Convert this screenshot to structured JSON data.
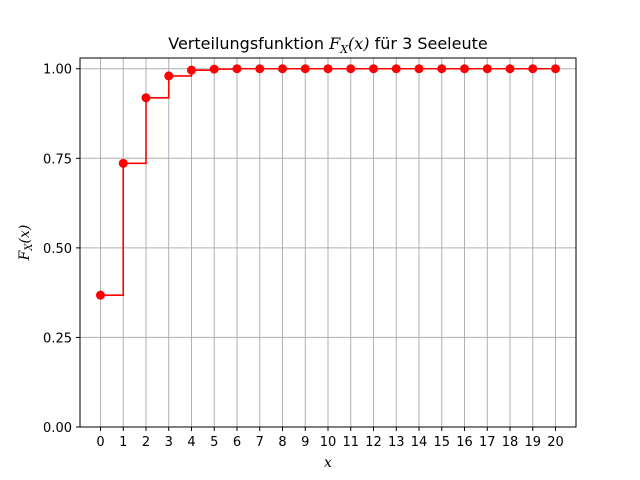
{
  "chart_data": {
    "type": "line",
    "title": "Verteilungsfunktion F_X(x) für 3 Seeleute",
    "title_parts": {
      "before": "Verteilungsfunktion ",
      "func": "F",
      "sub": "X",
      "arg": "(x)",
      "after": " für 3 Seeleute"
    },
    "xlabel": "x",
    "ylabel_parts": {
      "func": "F",
      "sub": "X",
      "arg": "(x)"
    },
    "x": [
      0,
      1,
      2,
      3,
      4,
      5,
      6,
      7,
      8,
      9,
      10,
      11,
      12,
      13,
      14,
      15,
      16,
      17,
      18,
      19,
      20
    ],
    "series": [
      {
        "values": [
          0.368,
          0.736,
          0.919,
          0.98,
          0.996,
          0.999,
          1.0,
          1.0,
          1.0,
          1.0,
          1.0,
          1.0,
          1.0,
          1.0,
          1.0,
          1.0,
          1.0,
          1.0,
          1.0,
          1.0,
          1.0
        ],
        "color": "#ff0000",
        "step": "post",
        "markers": true
      }
    ],
    "xlim": [
      -0.9,
      20.9
    ],
    "ylim": [
      0,
      1.03
    ],
    "xticks": [
      0,
      1,
      2,
      3,
      4,
      5,
      6,
      7,
      8,
      9,
      10,
      11,
      12,
      13,
      14,
      15,
      16,
      17,
      18,
      19,
      20
    ],
    "yticks": [
      0.0,
      0.25,
      0.5,
      0.75,
      1.0
    ],
    "ytick_labels": [
      "0.00",
      "0.25",
      "0.50",
      "0.75",
      "1.00"
    ],
    "grid": true,
    "grid_color": "#b0b0b0"
  }
}
